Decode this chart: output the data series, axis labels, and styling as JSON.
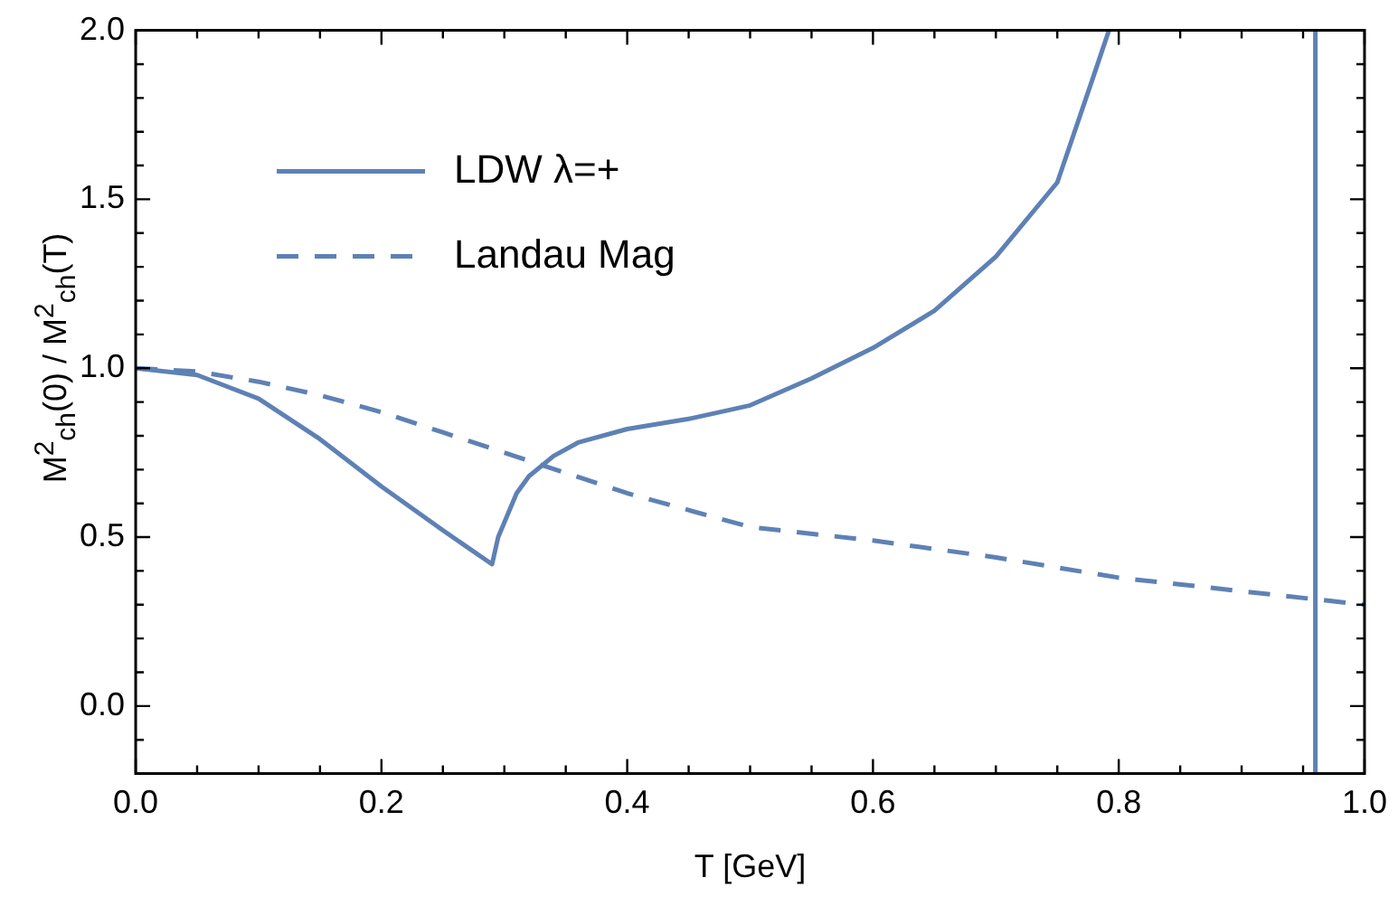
{
  "chart_data": {
    "type": "line",
    "xlabel": "T [GeV]",
    "ylabel": "M$^{2}$$_{ch}$(0) / M$^{2}$$_{ch}$(T)",
    "xlim": [
      0,
      1.0
    ],
    "ylim": [
      -0.2,
      2.0
    ],
    "xticks": [
      {
        "value": 0,
        "label": "0.0"
      },
      {
        "value": 0.05,
        "label": null
      },
      {
        "value": 0.1,
        "label": null
      },
      {
        "value": 0.15,
        "label": null
      },
      {
        "value": 0.2,
        "label": "0.2"
      },
      {
        "value": 0.25,
        "label": null
      },
      {
        "value": 0.3,
        "label": null
      },
      {
        "value": 0.35,
        "label": null
      },
      {
        "value": 0.4,
        "label": "0.4"
      },
      {
        "value": 0.45,
        "label": null
      },
      {
        "value": 0.5,
        "label": null
      },
      {
        "value": 0.55,
        "label": null
      },
      {
        "value": 0.6,
        "label": "0.6"
      },
      {
        "value": 0.65,
        "label": null
      },
      {
        "value": 0.7,
        "label": null
      },
      {
        "value": 0.75,
        "label": null
      },
      {
        "value": 0.8,
        "label": "0.8"
      },
      {
        "value": 0.85,
        "label": null
      },
      {
        "value": 0.9,
        "label": null
      },
      {
        "value": 0.95,
        "label": null
      },
      {
        "value": 1.0,
        "label": "1.0"
      }
    ],
    "yticks": [
      {
        "value": -0.1,
        "label": null
      },
      {
        "value": 0,
        "label": "0.0"
      },
      {
        "value": 0.1,
        "label": null
      },
      {
        "value": 0.2,
        "label": null
      },
      {
        "value": 0.3,
        "label": null
      },
      {
        "value": 0.4,
        "label": null
      },
      {
        "value": 0.5,
        "label": "0.5"
      },
      {
        "value": 0.6,
        "label": null
      },
      {
        "value": 0.7,
        "label": null
      },
      {
        "value": 0.8,
        "label": null
      },
      {
        "value": 0.9,
        "label": null
      },
      {
        "value": 1.0,
        "label": "1.0"
      },
      {
        "value": 1.1,
        "label": null
      },
      {
        "value": 1.2,
        "label": null
      },
      {
        "value": 1.3,
        "label": null
      },
      {
        "value": 1.4,
        "label": null
      },
      {
        "value": 1.5,
        "label": "1.5"
      },
      {
        "value": 1.6,
        "label": null
      },
      {
        "value": 1.7,
        "label": null
      },
      {
        "value": 1.8,
        "label": null
      },
      {
        "value": 1.9,
        "label": null
      },
      {
        "value": 2.0,
        "label": "2.0"
      }
    ],
    "grid": false,
    "legend": "top left",
    "marker": "none",
    "series": [
      {
        "name": "LDW λ=+",
        "color": "#5e81b5",
        "line_style": "solid",
        "x": [
          0,
          0.05,
          0.1,
          0.15,
          0.2,
          0.25,
          0.29,
          0.295,
          0.31,
          0.32,
          0.34,
          0.36,
          0.4,
          0.45,
          0.5,
          0.55,
          0.6,
          0.65,
          0.7,
          0.75,
          0.78,
          0.792
        ],
        "values": [
          1.0,
          0.98,
          0.91,
          0.79,
          0.65,
          0.52,
          0.42,
          0.5,
          0.63,
          0.68,
          0.74,
          0.78,
          0.82,
          0.85,
          0.89,
          0.97,
          1.06,
          1.17,
          1.33,
          1.55,
          1.87,
          2.0
        ]
      },
      {
        "name": "Landau Mag",
        "color": "#5e81b5",
        "line_style": "dashed",
        "x": [
          0,
          0.05,
          0.1,
          0.15,
          0.2,
          0.25,
          0.3,
          0.35,
          0.4,
          0.45,
          0.5,
          0.6,
          0.7,
          0.8,
          0.9,
          1.0
        ],
        "values": [
          1.0,
          0.99,
          0.96,
          0.92,
          0.87,
          0.81,
          0.75,
          0.69,
          0.63,
          0.58,
          0.53,
          0.49,
          0.44,
          0.38,
          0.34,
          0.3
        ]
      }
    ],
    "ref_lines": [
      {
        "axis": "x",
        "value": 0.96,
        "color": "#5e81b5",
        "line_style": "solid"
      }
    ]
  }
}
